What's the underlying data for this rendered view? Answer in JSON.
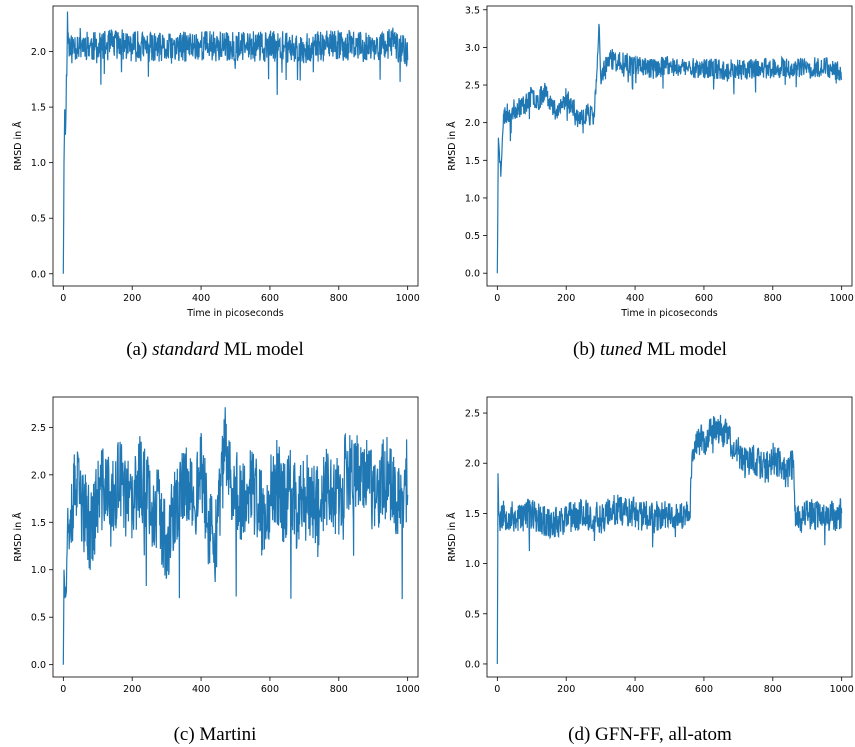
{
  "figure": {
    "captions": [
      {
        "prefix": "(a) ",
        "emph": "standard",
        "suffix": " ML model"
      },
      {
        "prefix": "(b) ",
        "emph": "tuned",
        "suffix": " ML model"
      },
      {
        "prefix": "(c) Martini",
        "emph": "",
        "suffix": ""
      },
      {
        "prefix": "(d) GFN-FF, all-atom",
        "emph": "",
        "suffix": ""
      }
    ]
  },
  "chart_data": [
    {
      "type": "line",
      "xlabel": "Time in picoseconds",
      "ylabel": "RMSD in Å",
      "xlim": [
        -30,
        1030
      ],
      "ylim": [
        -0.11,
        2.41
      ],
      "xticks": [
        0,
        200,
        400,
        600,
        800,
        1000
      ],
      "yticks": [
        0.0,
        0.5,
        1.0,
        1.5,
        2.0
      ],
      "ytick_labels": [
        "0.0",
        "0.5",
        "1.0",
        "1.5",
        "2.0"
      ],
      "color": "#1f77b4",
      "series": [
        {
          "x": [
            0,
            2,
            4,
            6,
            8,
            10,
            12,
            15,
            20,
            30,
            50,
            100,
            150,
            200,
            300,
            400,
            500,
            600,
            700,
            800,
            900,
            960,
            1000
          ],
          "y": [
            0.0,
            1.0,
            1.48,
            1.25,
            1.55,
            1.9,
            2.28,
            2.1,
            2.0,
            2.05,
            2.08,
            2.03,
            2.07,
            2.05,
            2.02,
            2.06,
            2.04,
            2.05,
            2.03,
            2.06,
            2.04,
            2.08,
            2.0
          ]
        }
      ],
      "noise": {
        "band": 0.14,
        "seed": 11
      }
    },
    {
      "type": "line",
      "xlabel": "Time in picoseconds",
      "ylabel": "RMSD in Å",
      "xlim": [
        -30,
        1030
      ],
      "ylim": [
        -0.17,
        3.55
      ],
      "xticks": [
        0,
        200,
        400,
        600,
        800,
        1000
      ],
      "yticks": [
        0.0,
        0.5,
        1.0,
        1.5,
        2.0,
        2.5,
        3.0,
        3.5
      ],
      "ytick_labels": [
        "0.0",
        "0.5",
        "1.0",
        "1.5",
        "2.0",
        "2.5",
        "3.0",
        "3.5"
      ],
      "color": "#1f77b4",
      "series": [
        {
          "x": [
            0,
            3,
            6,
            10,
            15,
            20,
            40,
            60,
            80,
            100,
            120,
            140,
            160,
            180,
            200,
            220,
            240,
            260,
            280,
            290,
            295,
            300,
            310,
            330,
            350,
            400,
            450,
            500,
            600,
            700,
            800,
            900,
            950,
            1000
          ],
          "y": [
            0.0,
            1.8,
            1.6,
            1.35,
            1.9,
            2.1,
            2.15,
            2.2,
            2.25,
            2.35,
            2.3,
            2.45,
            2.2,
            2.15,
            2.35,
            2.2,
            2.0,
            2.15,
            2.05,
            2.7,
            3.3,
            2.55,
            2.75,
            2.85,
            2.8,
            2.78,
            2.72,
            2.75,
            2.72,
            2.7,
            2.73,
            2.72,
            2.75,
            2.68
          ]
        }
      ],
      "noise": {
        "band": 0.14,
        "seed": 23
      }
    },
    {
      "type": "line",
      "xlabel": "",
      "ylabel": "RMSD in Å",
      "xlim": [
        -30,
        1030
      ],
      "ylim": [
        -0.13,
        2.82
      ],
      "xticks": [
        0,
        200,
        400,
        600,
        800,
        1000
      ],
      "yticks": [
        0.0,
        0.5,
        1.0,
        1.5,
        2.0,
        2.5
      ],
      "ytick_labels": [
        "0.0",
        "0.5",
        "1.0",
        "1.5",
        "2.0",
        "2.5"
      ],
      "color": "#1f77b4",
      "series": [
        {
          "x": [
            0,
            2,
            5,
            10,
            20,
            40,
            60,
            80,
            100,
            120,
            140,
            160,
            180,
            200,
            220,
            240,
            260,
            280,
            300,
            320,
            340,
            360,
            380,
            400,
            420,
            440,
            460,
            470,
            480,
            500,
            520,
            540,
            560,
            580,
            600,
            620,
            640,
            660,
            680,
            700,
            720,
            740,
            760,
            780,
            800,
            820,
            840,
            860,
            880,
            900,
            920,
            940,
            960,
            980,
            1000
          ],
          "y": [
            0.0,
            1.0,
            0.7,
            1.3,
            1.7,
            1.85,
            1.6,
            1.4,
            1.75,
            1.9,
            1.65,
            1.95,
            1.8,
            1.6,
            2.0,
            1.85,
            1.7,
            1.6,
            1.25,
            1.55,
            1.8,
            1.95,
            1.7,
            2.1,
            1.5,
            1.2,
            1.9,
            2.3,
            2.0,
            1.85,
            1.7,
            1.9,
            1.75,
            1.55,
            1.8,
            1.95,
            1.7,
            1.85,
            1.6,
            1.9,
            1.75,
            1.65,
            1.85,
            1.9,
            1.7,
            2.0,
            1.95,
            2.1,
            1.95,
            1.8,
            1.9,
            2.05,
            1.85,
            1.7,
            2.0
          ]
        }
      ],
      "noise": {
        "band": 0.45,
        "seed": 37
      }
    },
    {
      "type": "line",
      "xlabel": "",
      "ylabel": "RMSD in Å",
      "xlim": [
        -30,
        1030
      ],
      "ylim": [
        -0.13,
        2.66
      ],
      "xticks": [
        0,
        200,
        400,
        600,
        800,
        1000
      ],
      "yticks": [
        0.0,
        0.5,
        1.0,
        1.5,
        2.0,
        2.5
      ],
      "ytick_labels": [
        "0.0",
        "0.5",
        "1.0",
        "1.5",
        "2.0",
        "2.5"
      ],
      "color": "#1f77b4",
      "series": [
        {
          "x": [
            0,
            2,
            4,
            8,
            20,
            50,
            100,
            150,
            200,
            250,
            300,
            350,
            400,
            450,
            500,
            540,
            560,
            565,
            580,
            600,
            620,
            640,
            660,
            680,
            700,
            720,
            740,
            760,
            780,
            800,
            820,
            840,
            860,
            865,
            880,
            900,
            950,
            1000
          ],
          "y": [
            0.0,
            1.9,
            1.5,
            1.45,
            1.5,
            1.45,
            1.5,
            1.4,
            1.45,
            1.5,
            1.45,
            1.55,
            1.5,
            1.45,
            1.5,
            1.45,
            1.55,
            2.1,
            2.2,
            2.25,
            2.3,
            2.35,
            2.3,
            2.2,
            2.1,
            2.0,
            2.05,
            2.0,
            1.95,
            2.05,
            2.0,
            1.9,
            2.0,
            1.5,
            1.45,
            1.5,
            1.45,
            1.5
          ]
        }
      ],
      "noise": {
        "band": 0.16,
        "seed": 53
      }
    }
  ]
}
